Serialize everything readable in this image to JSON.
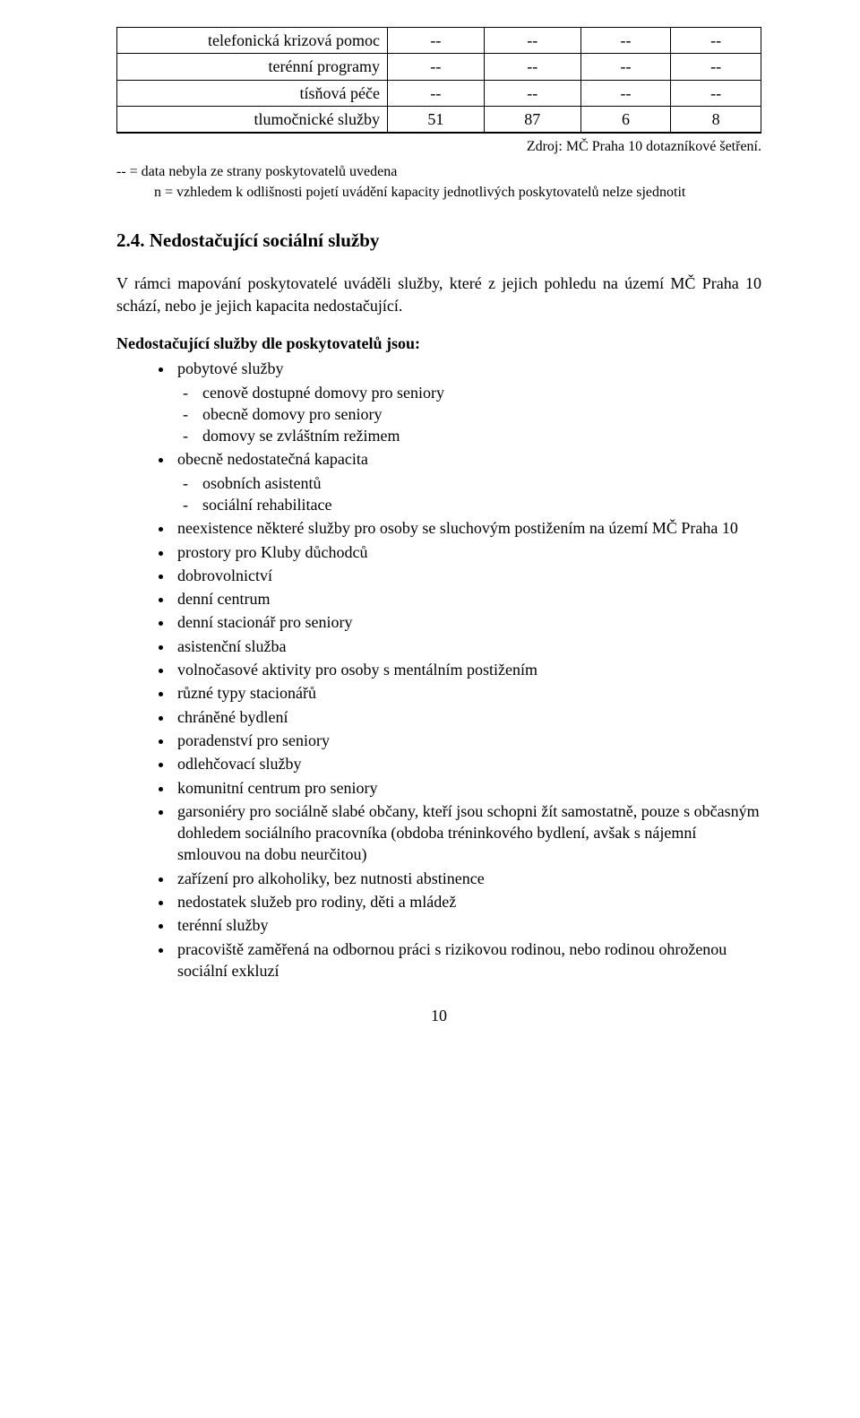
{
  "table": {
    "rows": [
      {
        "label": "telefonická krizová pomoc",
        "v1": "--",
        "v2": "--",
        "v3": "--",
        "v4": "--"
      },
      {
        "label": "terénní programy",
        "v1": "--",
        "v2": "--",
        "v3": "--",
        "v4": "--"
      },
      {
        "label": "tísňová péče",
        "v1": "--",
        "v2": "--",
        "v3": "--",
        "v4": "--"
      },
      {
        "label": "tlumočnické služby",
        "v1": "51",
        "v2": "87",
        "v3": "6",
        "v4": "8"
      }
    ],
    "source": "Zdroj: MČ Praha 10 dotazníkové šetření."
  },
  "notes": {
    "line1": "-- = data nebyla ze strany poskytovatelů uvedena",
    "line2": "n = vzhledem k odlišnosti pojetí uvádění kapacity jednotlivých poskytovatelů nelze sjednotit"
  },
  "section": {
    "heading": "2.4. Nedostačující sociální služby",
    "intro": "V rámci mapování poskytovatelé uváděli služby, které z jejich pohledu na území MČ Praha 10 schází, nebo je jejich kapacita nedostačující.",
    "lead": "Nedostačující služby dle poskytovatelů jsou:"
  },
  "list": {
    "i0": {
      "label": "pobytové služby",
      "sub": {
        "s0": "cenově dostupné domovy pro seniory",
        "s1": "obecně domovy pro seniory",
        "s2": "domovy se zvláštním režimem"
      }
    },
    "i1": {
      "label": "obecně nedostatečná kapacita",
      "sub": {
        "s0": "osobních asistentů",
        "s1": "sociální rehabilitace"
      }
    },
    "i2": "neexistence některé služby pro osoby se sluchovým postižením na území MČ Praha 10",
    "i3": "prostory pro Kluby důchodců",
    "i4": "dobrovolnictví",
    "i5": "denní centrum",
    "i6": "denní stacionář pro seniory",
    "i7": "asistenční služba",
    "i8": "volnočasové aktivity pro osoby s mentálním postižením",
    "i9": "různé typy stacionářů",
    "i10": "chráněné bydlení",
    "i11": "poradenství pro seniory",
    "i12": "odlehčovací služby",
    "i13": "komunitní centrum pro seniory",
    "i14": "garsoniéry pro sociálně slabé občany, kteří jsou schopni žít samostatně, pouze s občasným dohledem sociálního pracovníka (obdoba tréninkového bydlení, avšak s nájemní smlouvou na dobu neurčitou)",
    "i15": "zařízení pro alkoholiky, bez nutnosti abstinence",
    "i16": "nedostatek služeb pro rodiny, děti a mládež",
    "i17": "terénní služby",
    "i18": "pracoviště zaměřená na odbornou práci s rizikovou rodinou, nebo rodinou ohroženou sociální exkluzí"
  },
  "page_number": "10"
}
